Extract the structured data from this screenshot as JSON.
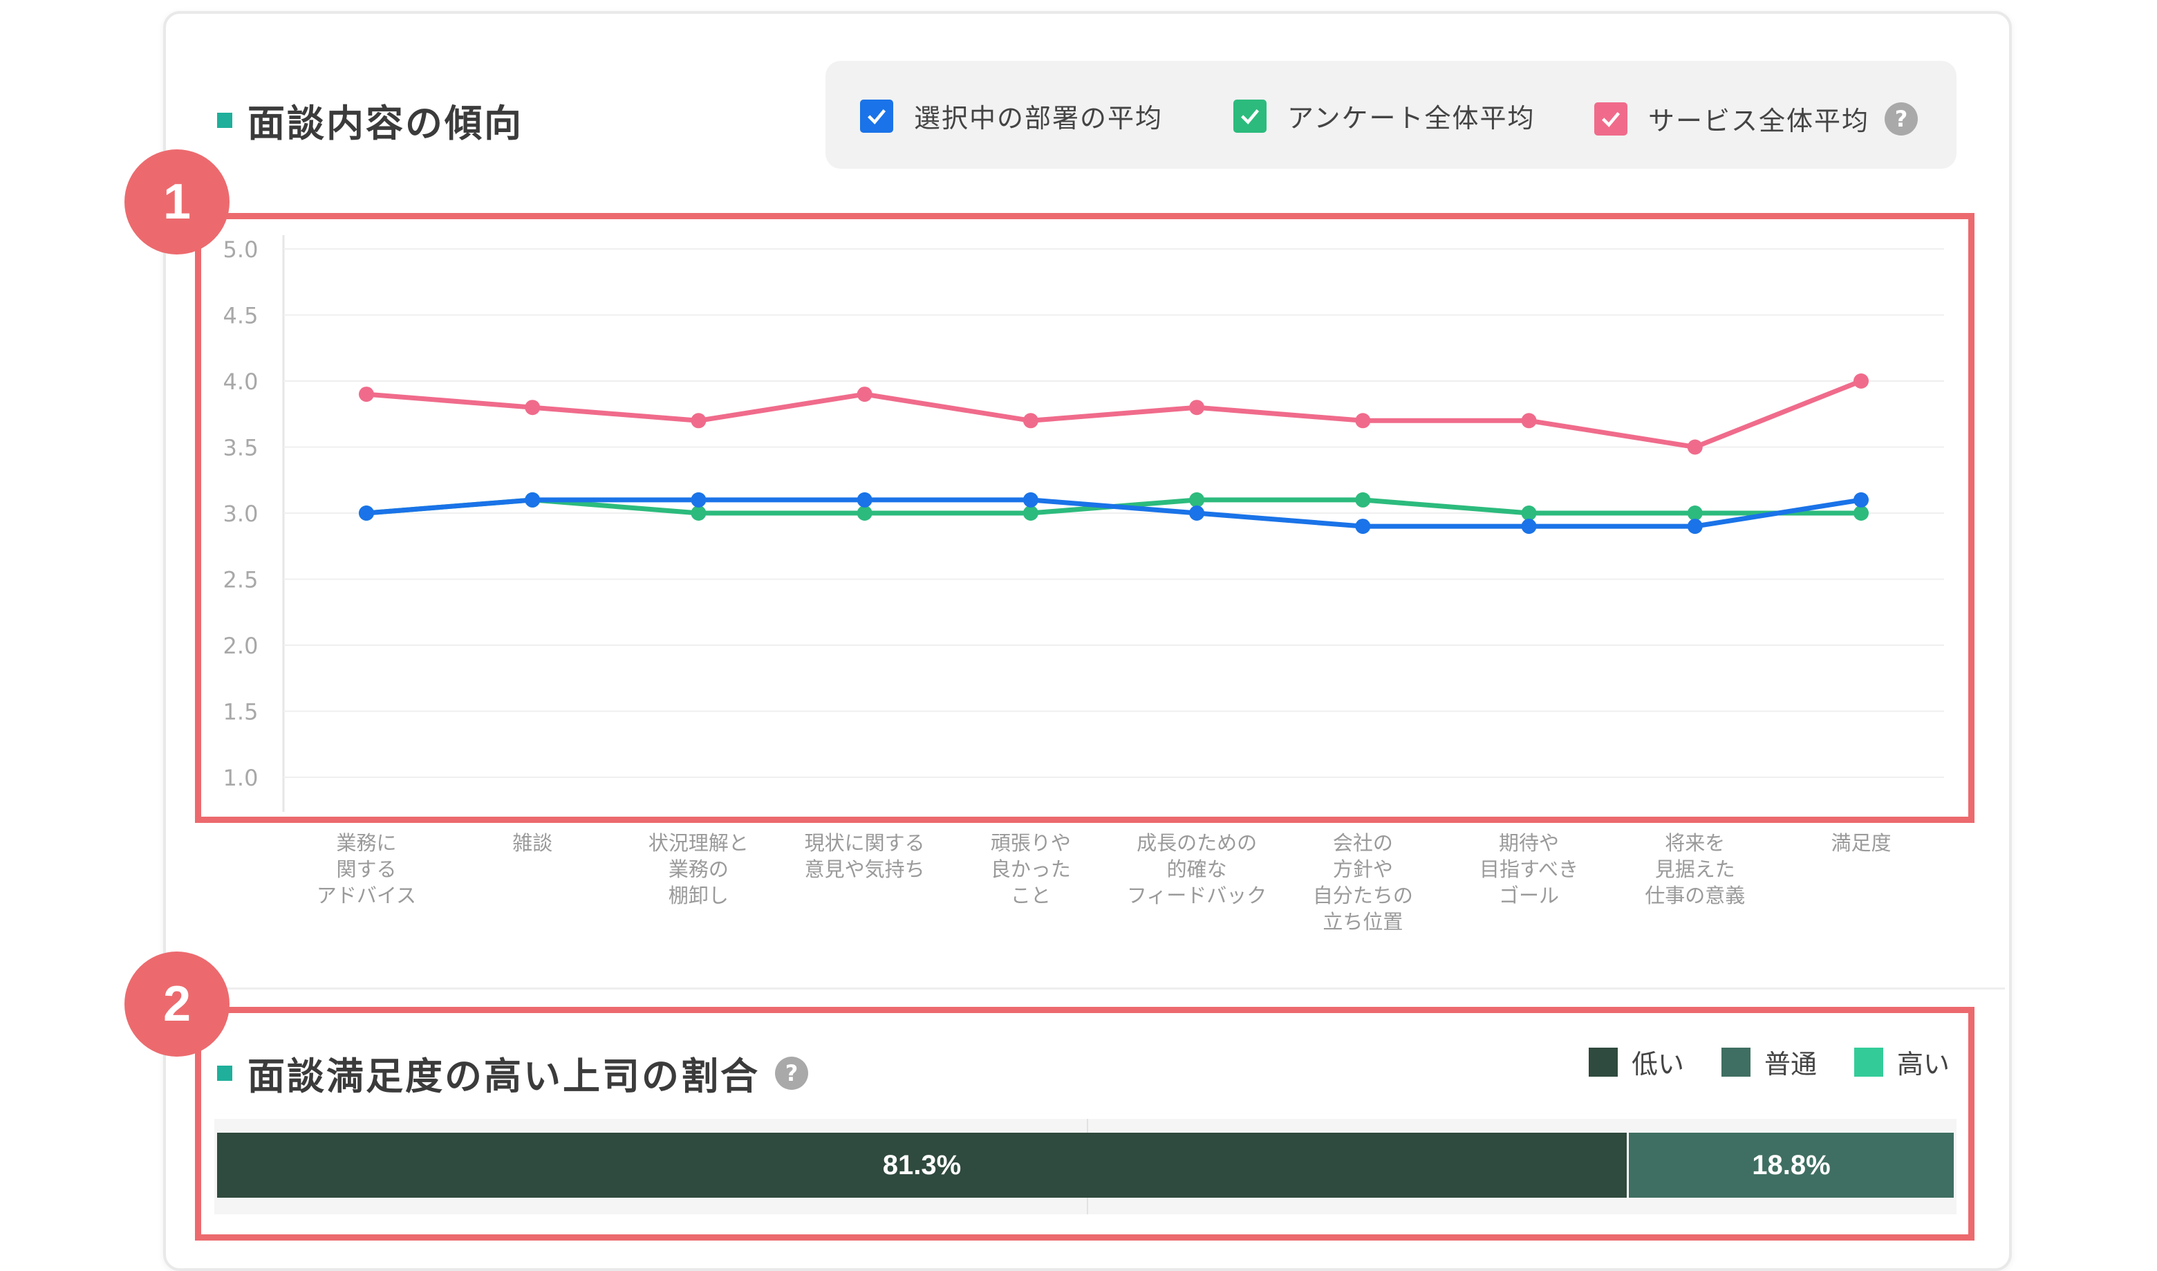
{
  "trend_section": {
    "title": "面談内容の傾向",
    "legend": [
      {
        "label": "選択中の部署の平均",
        "color": "#1a73e8"
      },
      {
        "label": "アンケート全体平均",
        "color": "#2cbb7d"
      },
      {
        "label": "サービス全体平均",
        "color": "#f06b8b"
      }
    ],
    "help_icon": "?"
  },
  "badges": [
    "1",
    "2"
  ],
  "chart_data": {
    "type": "line",
    "categories": [
      "業務に\n関する\nアドバイス",
      "雑談",
      "状況理解と\n業務の\n棚卸し",
      "現状に関する\n意見や気持ち",
      "頑張りや\n良かった\nこと",
      "成長のための\n的確な\nフィードバック",
      "会社の\n方針や\n自分たちの\n立ち位置",
      "期待や\n目指すべき\nゴール",
      "将来を\n見据えた\n仕事の意義",
      "満足度"
    ],
    "yticks": [
      "5.0",
      "4.5",
      "4.0",
      "3.5",
      "3.0",
      "2.5",
      "2.0",
      "1.5",
      "1.0"
    ],
    "ylim": [
      1.0,
      5.0
    ],
    "series": [
      {
        "name": "サービス全体平均",
        "color": "#f06b8b",
        "values": [
          3.9,
          3.8,
          3.7,
          3.9,
          3.7,
          3.8,
          3.7,
          3.7,
          3.5,
          4.0
        ]
      },
      {
        "name": "アンケート全体平均",
        "color": "#2cbb7d",
        "values": [
          3.0,
          3.1,
          3.0,
          3.0,
          3.0,
          3.1,
          3.1,
          3.0,
          3.0,
          3.0
        ]
      },
      {
        "name": "選択中の部署の平均",
        "color": "#1a73e8",
        "values": [
          3.0,
          3.1,
          3.1,
          3.1,
          3.1,
          3.0,
          2.9,
          2.9,
          2.9,
          3.1
        ]
      }
    ],
    "grid": true
  },
  "satisfaction_section": {
    "title": "面談満足度の高い上司の割合",
    "help_icon": "?",
    "legend": [
      {
        "label": "低い",
        "color": "#2f4a3e"
      },
      {
        "label": "普通",
        "color": "#3f6f62"
      },
      {
        "label": "高い",
        "color": "#33cc99"
      }
    ],
    "bar": [
      {
        "label": "81.3%",
        "percent": 81.3,
        "color": "#2f4a3e"
      },
      {
        "label": "18.8%",
        "percent": 18.8,
        "color": "#3f6f62"
      }
    ]
  }
}
